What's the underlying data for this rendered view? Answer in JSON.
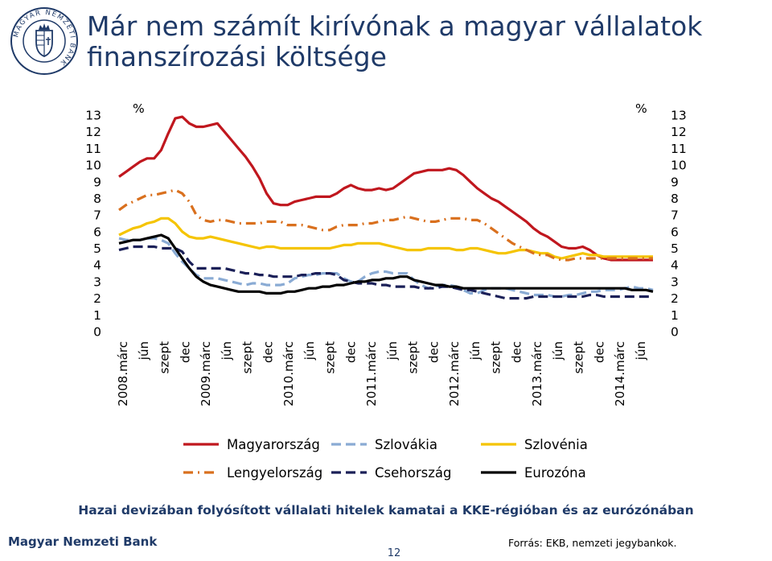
{
  "header": {
    "title_line1": "Már nem számít kirívónak a magyar vállalatok",
    "title_line2": "finanszírozási költsége"
  },
  "footer": {
    "bank": "Magyar Nemzeti Bank",
    "page": "12",
    "source": "Forrás: EKB, nemzeti jegybankok."
  },
  "logo_text": "MAGYAR NEMZETI BANK",
  "colors": {
    "title": "#1f3a68",
    "hungary": "#c0171e",
    "slovakia": "#8aabd4",
    "slovenia": "#f5c400",
    "poland": "#d9701e",
    "czech": "#1b2058",
    "eurozone": "#000000"
  },
  "chart_data": {
    "type": "line",
    "title": "Hazai devizában folyósított vállalati hitelek kamatai a KKE-régióban és az eurózónában",
    "y_unit_left": "%",
    "y_unit_right": "%",
    "ylim": [
      0,
      13
    ],
    "yticks": [
      0,
      1,
      2,
      3,
      4,
      5,
      6,
      7,
      8,
      9,
      10,
      11,
      12,
      13
    ],
    "x_tick_labels": [
      "2008.márc",
      "jún",
      "szept",
      "dec",
      "2009.márc",
      "jún",
      "szept",
      "dec",
      "2010.márc",
      "jún",
      "szept",
      "dec",
      "2011.márc",
      "jún",
      "szept",
      "dec",
      "2012.márc",
      "jún",
      "szept",
      "dec",
      "2013.márc",
      "jún",
      "szept",
      "dec",
      "2014.márc",
      "jún"
    ],
    "x_start": "2008-03",
    "x_end": "2014-08",
    "grid": false,
    "legend_position": "bottom",
    "series": [
      {
        "name": "Magyarország",
        "style": "solid",
        "color": "#c0171e",
        "values": [
          9.3,
          9.6,
          9.9,
          10.2,
          10.4,
          10.4,
          10.9,
          11.9,
          12.8,
          12.9,
          12.5,
          12.3,
          12.3,
          12.4,
          12.5,
          12.0,
          11.5,
          11.0,
          10.5,
          9.9,
          9.2,
          8.3,
          7.7,
          7.6,
          7.6,
          7.8,
          7.9,
          8.0,
          8.1,
          8.1,
          8.1,
          8.3,
          8.6,
          8.8,
          8.6,
          8.5,
          8.5,
          8.6,
          8.5,
          8.6,
          8.9,
          9.2,
          9.5,
          9.6,
          9.7,
          9.7,
          9.7,
          9.8,
          9.7,
          9.4,
          9.0,
          8.6,
          8.3,
          8.0,
          7.8,
          7.5,
          7.2,
          6.9,
          6.6,
          6.2,
          5.9,
          5.7,
          5.4,
          5.1,
          5.0,
          5.0,
          5.1,
          4.9,
          4.6,
          4.4,
          4.3,
          4.3,
          4.3,
          4.3,
          4.3,
          4.3,
          4.3
        ]
      },
      {
        "name": "Szlovákia",
        "style": "dashed",
        "color": "#8aabd4",
        "values": [
          5.6,
          5.5,
          5.5,
          5.5,
          5.6,
          5.6,
          5.5,
          5.3,
          4.7,
          4.2,
          3.8,
          3.4,
          3.2,
          3.2,
          3.2,
          3.1,
          3.0,
          2.9,
          2.8,
          2.9,
          2.9,
          2.8,
          2.8,
          2.8,
          2.9,
          3.2,
          3.3,
          3.4,
          3.4,
          3.5,
          3.5,
          3.5,
          3.2,
          3.0,
          3.0,
          3.3,
          3.5,
          3.6,
          3.6,
          3.5,
          3.5,
          3.5,
          3.1,
          2.8,
          2.6,
          2.7,
          2.8,
          2.8,
          2.7,
          2.5,
          2.3,
          2.3,
          2.5,
          2.6,
          2.6,
          2.6,
          2.5,
          2.4,
          2.3,
          2.2,
          2.2,
          2.2,
          2.1,
          2.1,
          2.2,
          2.2,
          2.3,
          2.4,
          2.4,
          2.5,
          2.5,
          2.5,
          2.6,
          2.7,
          2.6,
          2.6,
          2.5
        ]
      },
      {
        "name": "Szlovénia",
        "style": "solid",
        "color": "#f5c400",
        "values": [
          5.8,
          6.0,
          6.2,
          6.3,
          6.5,
          6.6,
          6.8,
          6.8,
          6.5,
          6.0,
          5.7,
          5.6,
          5.6,
          5.7,
          5.6,
          5.5,
          5.4,
          5.3,
          5.2,
          5.1,
          5.0,
          5.1,
          5.1,
          5.0,
          5.0,
          5.0,
          5.0,
          5.0,
          5.0,
          5.0,
          5.0,
          5.1,
          5.2,
          5.2,
          5.3,
          5.3,
          5.3,
          5.3,
          5.2,
          5.1,
          5.0,
          4.9,
          4.9,
          4.9,
          5.0,
          5.0,
          5.0,
          5.0,
          4.9,
          4.9,
          5.0,
          5.0,
          4.9,
          4.8,
          4.7,
          4.7,
          4.8,
          4.9,
          4.9,
          4.8,
          4.7,
          4.7,
          4.5,
          4.4,
          4.5,
          4.6,
          4.7,
          4.6,
          4.6,
          4.5,
          4.5,
          4.5,
          4.5,
          4.5,
          4.5,
          4.5,
          4.5
        ]
      },
      {
        "name": "Lengyelország",
        "style": "dashdot",
        "color": "#d9701e",
        "values": [
          7.3,
          7.6,
          7.8,
          8.0,
          8.2,
          8.2,
          8.3,
          8.4,
          8.5,
          8.3,
          7.8,
          7.0,
          6.7,
          6.6,
          6.7,
          6.7,
          6.6,
          6.5,
          6.5,
          6.5,
          6.5,
          6.6,
          6.6,
          6.6,
          6.4,
          6.4,
          6.4,
          6.3,
          6.2,
          6.1,
          6.1,
          6.3,
          6.4,
          6.4,
          6.4,
          6.5,
          6.5,
          6.6,
          6.7,
          6.7,
          6.8,
          6.9,
          6.8,
          6.7,
          6.6,
          6.6,
          6.7,
          6.8,
          6.8,
          6.8,
          6.7,
          6.7,
          6.5,
          6.2,
          5.9,
          5.6,
          5.3,
          5.1,
          4.9,
          4.7,
          4.6,
          4.6,
          4.4,
          4.3,
          4.3,
          4.4,
          4.4,
          4.4,
          4.4,
          4.4,
          4.4,
          4.4,
          4.4,
          4.4,
          4.4,
          4.4,
          4.4
        ]
      },
      {
        "name": "Csehország",
        "style": "dashed",
        "color": "#1b2058",
        "values": [
          4.9,
          5.0,
          5.1,
          5.1,
          5.1,
          5.1,
          5.0,
          5.0,
          5.0,
          4.8,
          4.2,
          3.8,
          3.8,
          3.8,
          3.8,
          3.8,
          3.7,
          3.6,
          3.5,
          3.5,
          3.4,
          3.4,
          3.3,
          3.3,
          3.3,
          3.3,
          3.4,
          3.4,
          3.5,
          3.5,
          3.5,
          3.4,
          3.1,
          3.0,
          2.9,
          2.9,
          2.9,
          2.8,
          2.8,
          2.7,
          2.7,
          2.7,
          2.7,
          2.6,
          2.6,
          2.6,
          2.7,
          2.7,
          2.6,
          2.5,
          2.5,
          2.4,
          2.3,
          2.2,
          2.1,
          2.0,
          2.0,
          2.0,
          2.0,
          2.1,
          2.1,
          2.1,
          2.1,
          2.1,
          2.1,
          2.1,
          2.1,
          2.2,
          2.2,
          2.1,
          2.1,
          2.1,
          2.1,
          2.1,
          2.1,
          2.1,
          2.1
        ]
      },
      {
        "name": "Eurozóna",
        "style": "solid",
        "color": "#000000",
        "values": [
          5.3,
          5.4,
          5.5,
          5.5,
          5.6,
          5.7,
          5.8,
          5.6,
          5.0,
          4.4,
          3.8,
          3.3,
          3.0,
          2.8,
          2.7,
          2.6,
          2.5,
          2.4,
          2.4,
          2.4,
          2.4,
          2.3,
          2.3,
          2.3,
          2.4,
          2.4,
          2.5,
          2.6,
          2.6,
          2.7,
          2.7,
          2.8,
          2.8,
          2.9,
          3.0,
          3.0,
          3.1,
          3.1,
          3.2,
          3.2,
          3.3,
          3.3,
          3.1,
          3.0,
          2.9,
          2.8,
          2.8,
          2.7,
          2.7,
          2.6,
          2.6,
          2.6,
          2.6,
          2.6,
          2.6,
          2.6,
          2.6,
          2.6,
          2.6,
          2.6,
          2.6,
          2.6,
          2.6,
          2.6,
          2.6,
          2.6,
          2.6,
          2.6,
          2.6,
          2.6,
          2.6,
          2.6,
          2.6,
          2.5,
          2.5,
          2.5,
          2.4
        ]
      }
    ]
  }
}
